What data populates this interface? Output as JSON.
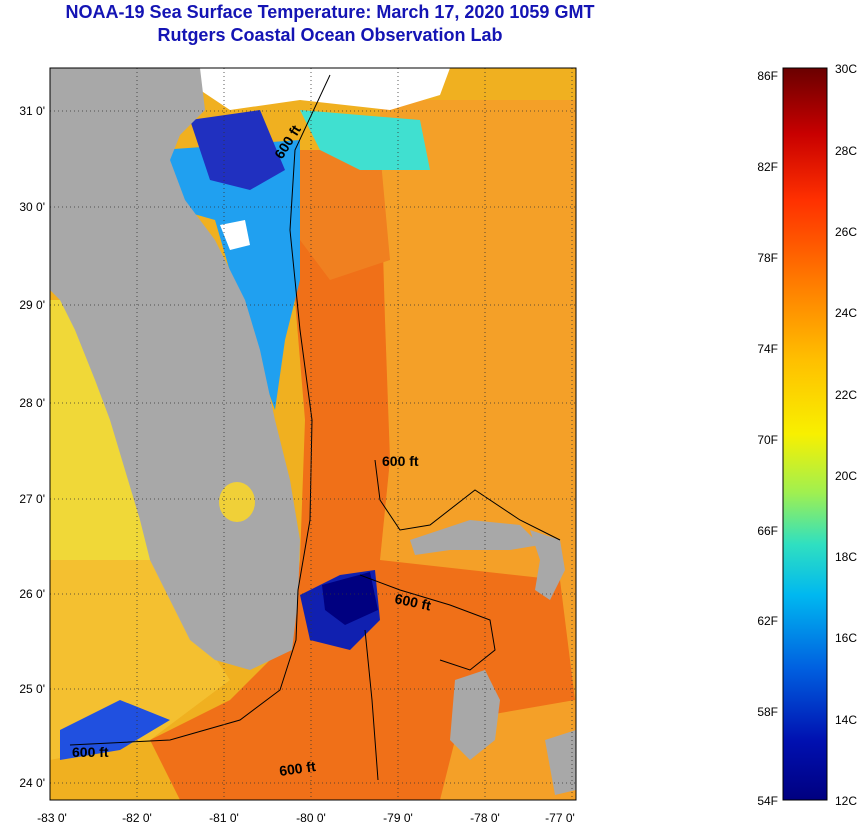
{
  "title": "NOAA-19 Sea Surface Temperature:  March 17, 2020 1059 GMT",
  "subtitle": "Rutgers Coastal Ocean Observation Lab",
  "map": {
    "lon_ticks": [
      "-83 0'",
      "-82 0'",
      "-81 0'",
      "-80 0'",
      "-79 0'",
      "-78 0'",
      "-77 0'"
    ],
    "lat_ticks": [
      "31 0'",
      "30 0'",
      "29 0'",
      "28 0'",
      "27 0'",
      "26 0'",
      "25 0'",
      "24 0'"
    ],
    "contour_labels": [
      "600 ft",
      "600 ft",
      "600 ft",
      "600 ft",
      "600 ft"
    ],
    "colors": {
      "land": "#a8a8a8",
      "cloud": "#ffffff",
      "warm": "#f07018",
      "mid": "#f0b020",
      "cool": "#f0e040",
      "cold": "#2040d0"
    }
  },
  "colorbar": {
    "fahrenheit": [
      "86F",
      "82F",
      "78F",
      "74F",
      "70F",
      "66F",
      "62F",
      "58F",
      "54F"
    ],
    "celsius": [
      "30C",
      "28C",
      "26C",
      "24C",
      "22C",
      "20C",
      "18C",
      "16C",
      "14C",
      "12C"
    ],
    "stops": [
      "#6a0000",
      "#c80000",
      "#ff3000",
      "#ff8000",
      "#ffc000",
      "#f8f000",
      "#a0f050",
      "#30e0c0",
      "#00b8f0",
      "#0060e0",
      "#0010b0",
      "#000080"
    ]
  }
}
